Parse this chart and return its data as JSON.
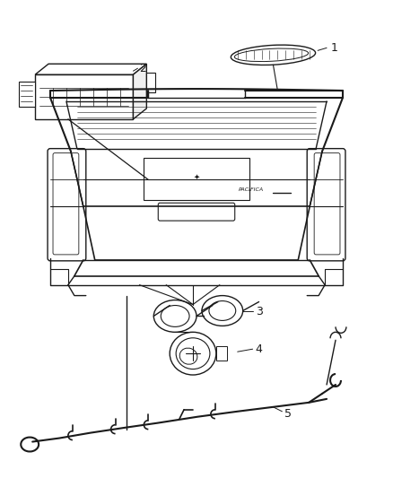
{
  "bg_color": "#ffffff",
  "line_color": "#1a1a1a",
  "fig_w": 4.38,
  "fig_h": 5.33,
  "dpi": 100
}
